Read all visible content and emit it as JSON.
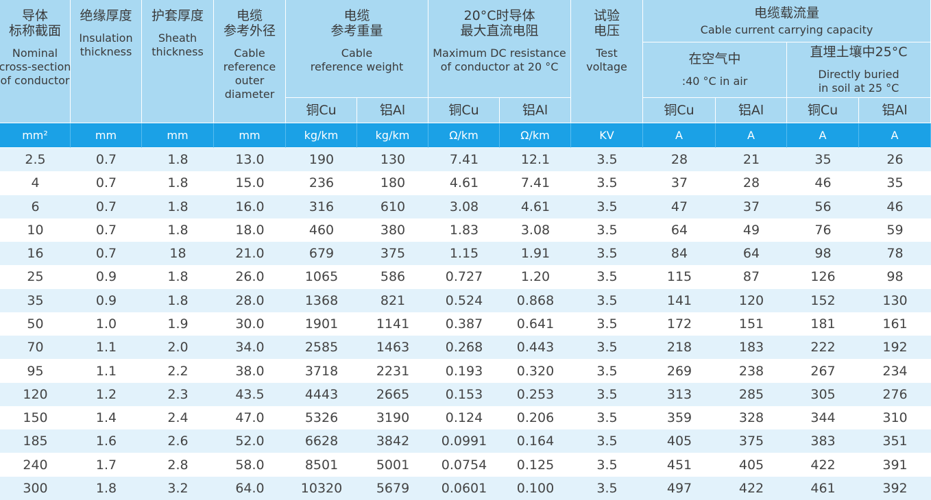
{
  "header": {
    "cells": [
      {
        "zh": [
          "导体",
          "标称截面"
        ],
        "en": [
          "Nominal",
          "cross-section",
          "of conductor"
        ]
      },
      {
        "zh": [
          "绝缘厚度"
        ],
        "en": [
          "Insulation",
          "thickness"
        ]
      },
      {
        "zh": [
          "护套厚度"
        ],
        "en": [
          "Sheath",
          "thickness"
        ]
      },
      {
        "zh": [
          "电缆",
          "参考外径"
        ],
        "en": [
          "Cable",
          "reference",
          "outer",
          "diameter"
        ]
      },
      {
        "zh": [
          "电缆",
          "参考重量"
        ],
        "en": [
          "Cable",
          "reference weight"
        ]
      },
      {
        "zh": [
          "20°C时导体",
          "最大直流电阻"
        ],
        "en": [
          "Maximum DC resistance",
          "of conductor at 20 °C"
        ]
      },
      {
        "zh": [
          "试验",
          "电压"
        ],
        "en": [
          "Test",
          "voltage"
        ]
      },
      {
        "zh": [
          "电缆载流量"
        ],
        "en": [
          "Cable current carrying capacity"
        ]
      },
      {
        "zh": [
          "在空气中"
        ],
        "en": [
          ":40 °C in air"
        ]
      },
      {
        "zh": [
          "直埋土壤中25°C"
        ],
        "en": [
          "Directly buried",
          "in soil at 25 °C"
        ]
      }
    ],
    "subheaders": [
      "铜Cu",
      "铝Al",
      "铜Cu",
      "铝Al",
      "铜Cu",
      "铝Al",
      "铜Cu",
      "铝Al"
    ],
    "units": [
      "mm²",
      "mm",
      "mm",
      "mm",
      "kg/km",
      "kg/km",
      "Ω/km",
      "Ω/km",
      "KV",
      "A",
      "A",
      "A",
      "A"
    ]
  },
  "table": {
    "rows": [
      [
        "2.5",
        "0.7",
        "1.8",
        "13.0",
        "190",
        "130",
        "7.41",
        "12.1",
        "3.5",
        "28",
        "21",
        "35",
        "26"
      ],
      [
        "4",
        "0.7",
        "1.8",
        "15.0",
        "236",
        "180",
        "4.61",
        "7.41",
        "3.5",
        "37",
        "28",
        "46",
        "35"
      ],
      [
        "6",
        "0.7",
        "1.8",
        "16.0",
        "316",
        "610",
        "3.08",
        "4.61",
        "3.5",
        "47",
        "37",
        "56",
        "46"
      ],
      [
        "10",
        "0.7",
        "1.8",
        "18.0",
        "460",
        "380",
        "1.83",
        "3.08",
        "3.5",
        "64",
        "49",
        "76",
        "59"
      ],
      [
        "16",
        "0.7",
        "18",
        "21.0",
        "679",
        "375",
        "1.15",
        "1.91",
        "3.5",
        "84",
        "64",
        "98",
        "78"
      ],
      [
        "25",
        "0.9",
        "1.8",
        "26.0",
        "1065",
        "586",
        "0.727",
        "1.20",
        "3.5",
        "115",
        "87",
        "126",
        "98"
      ],
      [
        "35",
        "0.9",
        "1.8",
        "28.0",
        "1368",
        "821",
        "0.524",
        "0.868",
        "3.5",
        "141",
        "120",
        "152",
        "130"
      ],
      [
        "50",
        "1.0",
        "1.9",
        "30.0",
        "1901",
        "1141",
        "0.387",
        "0.641",
        "3.5",
        "172",
        "151",
        "181",
        "161"
      ],
      [
        "70",
        "1.1",
        "2.0",
        "34.0",
        "2585",
        "1463",
        "0.268",
        "0.443",
        "3.5",
        "218",
        "183",
        "222",
        "192"
      ],
      [
        "95",
        "1.1",
        "2.2",
        "38.0",
        "3718",
        "2231",
        "0.193",
        "0.320",
        "3.5",
        "269",
        "238",
        "267",
        "234"
      ],
      [
        "120",
        "1.2",
        "2.3",
        "43.5",
        "4443",
        "2665",
        "0.153",
        "0.253",
        "3.5",
        "313",
        "285",
        "305",
        "276"
      ],
      [
        "150",
        "1.4",
        "2.4",
        "47.0",
        "5326",
        "3190",
        "0.124",
        "0.206",
        "3.5",
        "359",
        "328",
        "344",
        "310"
      ],
      [
        "185",
        "1.6",
        "2.6",
        "52.0",
        "6628",
        "3842",
        "0.0991",
        "0.164",
        "3.5",
        "405",
        "375",
        "383",
        "351"
      ],
      [
        "240",
        "1.7",
        "2.8",
        "58.0",
        "8501",
        "5001",
        "0.0754",
        "0.125",
        "3.5",
        "451",
        "405",
        "422",
        "391"
      ],
      [
        "300",
        "1.8",
        "3.2",
        "64.0",
        "10320",
        "5679",
        "0.0601",
        "0.100",
        "3.5",
        "497",
        "422",
        "461",
        "392"
      ]
    ]
  }
}
